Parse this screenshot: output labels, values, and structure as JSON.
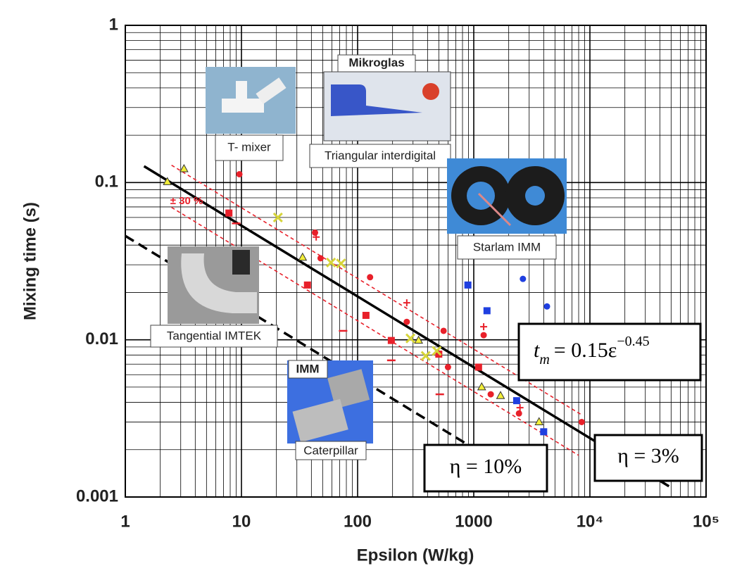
{
  "chart_data": {
    "type": "scatter",
    "x_label": "Epsilon (W/kg)",
    "y_label": "Mixing time (s)",
    "log_x": true,
    "log_y": true,
    "grid": true,
    "minor_grid": true,
    "xlim": [
      1,
      100000
    ],
    "ylim": [
      0.001,
      1
    ],
    "xticks": [
      1,
      10,
      100,
      1000,
      {
        "value": 10000,
        "label": "10⁴"
      },
      {
        "value": 100000,
        "label": "10⁵"
      }
    ],
    "yticks": [
      0.001,
      0.01,
      0.1,
      1
    ],
    "series": [
      {
        "marker": "circle",
        "color": "#e8202a",
        "x": [
          9.6,
          43,
          48,
          128,
          265,
          550,
          1217,
          600,
          1400,
          2450,
          8500
        ],
        "values": [
          0.113,
          0.048,
          0.033,
          0.025,
          0.013,
          0.0114,
          0.0107,
          0.0067,
          0.0045,
          0.0034,
          0.003
        ]
      },
      {
        "marker": "circle",
        "color": "#1f3fe0",
        "x": [
          2650,
          4270
        ],
        "values": [
          0.0244,
          0.0163
        ]
      },
      {
        "marker": "square",
        "color": "#e8202a",
        "x": [
          7.8,
          37,
          118,
          195,
          500,
          1100
        ],
        "values": [
          0.064,
          0.0223,
          0.0143,
          0.0099,
          0.0081,
          0.0067
        ]
      },
      {
        "marker": "square",
        "color": "#1f3fe0",
        "x": [
          890,
          1300,
          2340,
          4000
        ],
        "values": [
          0.0223,
          0.0153,
          0.0041,
          0.0026
        ]
      },
      {
        "marker": "triangle",
        "color": "#f2ee3a",
        "x": [
          2.3,
          3.2,
          33.6,
          335,
          1170,
          1700,
          3650
        ],
        "values": [
          0.101,
          0.122,
          0.0334,
          0.0099,
          0.005,
          0.0044,
          0.003
        ]
      },
      {
        "marker": "x",
        "color": "#d6d43a",
        "x": [
          20.6,
          59,
          72,
          285,
          386,
          480
        ],
        "values": [
          0.06,
          0.031,
          0.0306,
          0.0102,
          0.0079,
          0.0085
        ]
      },
      {
        "marker": "plus",
        "color": "#e8202a",
        "x": [
          44,
          265,
          1217,
          2500
        ],
        "values": [
          0.045,
          0.0172,
          0.0121,
          0.0037
        ]
      },
      {
        "marker": "dash",
        "color": "#e8202a",
        "x": [
          9,
          75,
          195,
          510
        ],
        "values": [
          0.055,
          0.0114,
          0.0074,
          0.0045
        ]
      }
    ],
    "lines": [
      {
        "style": "solid",
        "color": "#000000",
        "x": [
          1.45,
          47900
        ],
        "values": [
          0.127,
          0.00117
        ]
      },
      {
        "style": "dashed",
        "color": "#e8202a",
        "x": [
          2.5,
          8500
        ],
        "values": [
          0.129,
          0.00333
        ]
      },
      {
        "style": "dashed",
        "color": "#e8202a",
        "x": [
          2.5,
          8000
        ],
        "values": [
          0.0695,
          0.00184
        ]
      },
      {
        "style": "dashed",
        "color": "#000000",
        "x": [
          1,
          900
        ],
        "values": [
          0.0458,
          0.00214
        ]
      }
    ],
    "annotations": {
      "band": "± 30 %",
      "fit": [
        "t",
        "m",
        "= 0.15ε",
        "−0.45"
      ],
      "eta10": "η = 10%",
      "eta3": "η = 3%",
      "t_mixer": "T- mixer",
      "mikroglas": "Mikroglas",
      "triangular": "Triangular interdigital",
      "starlam": "Starlam IMM",
      "tangential": "Tangential IMTEK",
      "imm": "IMM",
      "caterpillar": "Caterpillar"
    }
  }
}
